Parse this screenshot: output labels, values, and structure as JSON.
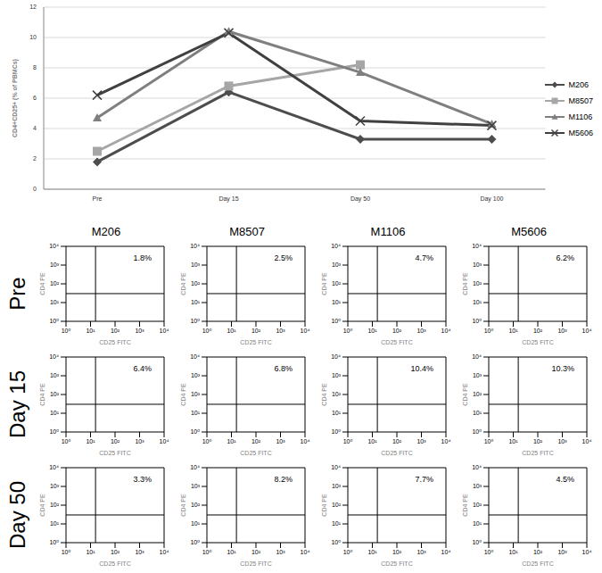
{
  "chart_data": [
    {
      "type": "line",
      "y_label": "CD4+CD25+ (% of PBMCs)",
      "categories": [
        "Pre",
        "Day 15",
        "Day 50",
        "Day 100"
      ],
      "ylim": [
        0,
        12
      ],
      "yticks": [
        0,
        2,
        4,
        6,
        8,
        10,
        12
      ],
      "grid": true,
      "legend": "right",
      "series": [
        {
          "name": "M206",
          "color": "#4d4d4d",
          "marker": "diamond",
          "values": [
            1.8,
            6.4,
            3.3,
            3.3
          ]
        },
        {
          "name": "M8507",
          "color": "#a6a6a6",
          "marker": "square",
          "values": [
            2.5,
            6.8,
            8.2,
            null
          ]
        },
        {
          "name": "M1106",
          "color": "#7f7f7f",
          "marker": "triangle",
          "values": [
            4.7,
            10.4,
            7.7,
            4.3
          ]
        },
        {
          "name": "M5606",
          "color": "#404040",
          "marker": "x",
          "values": [
            6.2,
            10.3,
            4.5,
            4.2
          ]
        }
      ]
    },
    {
      "type": "scatter",
      "log": true,
      "x_label": "CD25 FITC",
      "y_label": "CD4 PE",
      "xlim": [
        1,
        10000
      ],
      "ylim": [
        1,
        10000
      ],
      "xticks": [
        {
          "value": 1,
          "label": "10⁰"
        },
        {
          "value": 10,
          "label": "10¹"
        },
        {
          "value": 100,
          "label": "10²"
        },
        {
          "value": 1000,
          "label": "10³"
        },
        {
          "value": 10000,
          "label": "10⁴"
        }
      ],
      "yticks": [
        {
          "value": 1,
          "label": "10⁰"
        },
        {
          "value": 10,
          "label": "10¹"
        },
        {
          "value": 100,
          "label": "10²"
        },
        {
          "value": 1000,
          "label": "10³"
        },
        {
          "value": 10000,
          "label": "10⁴"
        }
      ],
      "gate": {
        "x": 16,
        "y": 30
      },
      "columns": [
        "M206",
        "M8507",
        "M1106",
        "M5606"
      ],
      "rows": [
        "Pre",
        "Day 15",
        "Day 50"
      ],
      "annotations": [
        [
          "1.8%",
          "2.5%",
          "4.7%",
          "6.2%"
        ],
        [
          "6.4%",
          "6.8%",
          "10.4%",
          "10.3%"
        ],
        [
          "3.3%",
          "8.2%",
          "7.7%",
          "4.5%"
        ]
      ]
    }
  ]
}
